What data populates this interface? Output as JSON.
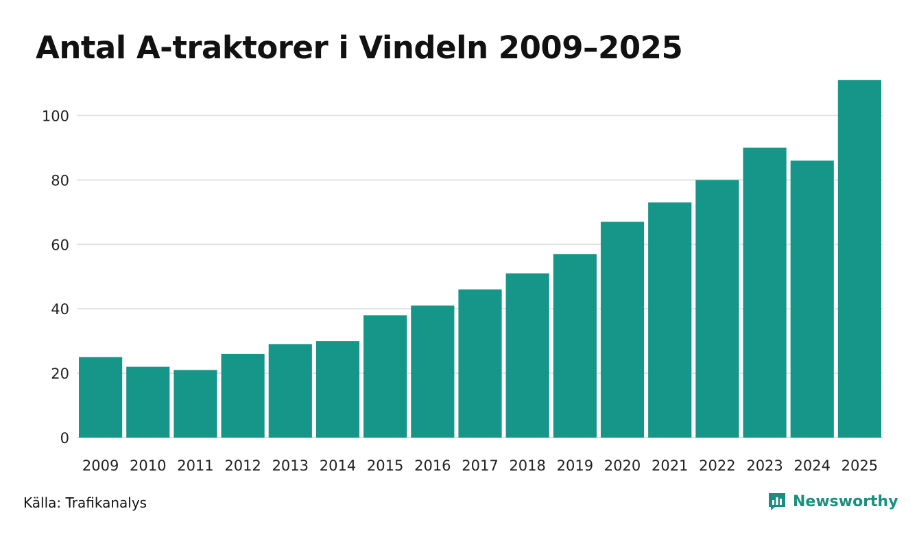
{
  "title": "Antal A-traktorer i Vindeln 2009–2025",
  "source": "Källa: Trafikanalys",
  "brand": {
    "name": "Newsworthy",
    "icon": "newsworthy-logo-icon",
    "color": "#1a8f80"
  },
  "colors": {
    "bar": "#159688",
    "grid": "#e2e2e2",
    "text": "#111111"
  },
  "chart_data": {
    "type": "bar",
    "title": "Antal A-traktorer i Vindeln 2009–2025",
    "xlabel": "",
    "ylabel": "",
    "categories": [
      "2009",
      "2010",
      "2011",
      "2012",
      "2013",
      "2014",
      "2015",
      "2016",
      "2017",
      "2018",
      "2019",
      "2020",
      "2021",
      "2022",
      "2023",
      "2024",
      "2025"
    ],
    "values": [
      25,
      22,
      21,
      26,
      29,
      30,
      38,
      41,
      46,
      51,
      57,
      67,
      73,
      80,
      90,
      86,
      111
    ],
    "ylim": [
      0,
      115
    ],
    "yticks": [
      0,
      20,
      40,
      60,
      80,
      100
    ],
    "grid": true,
    "legend": "none"
  }
}
